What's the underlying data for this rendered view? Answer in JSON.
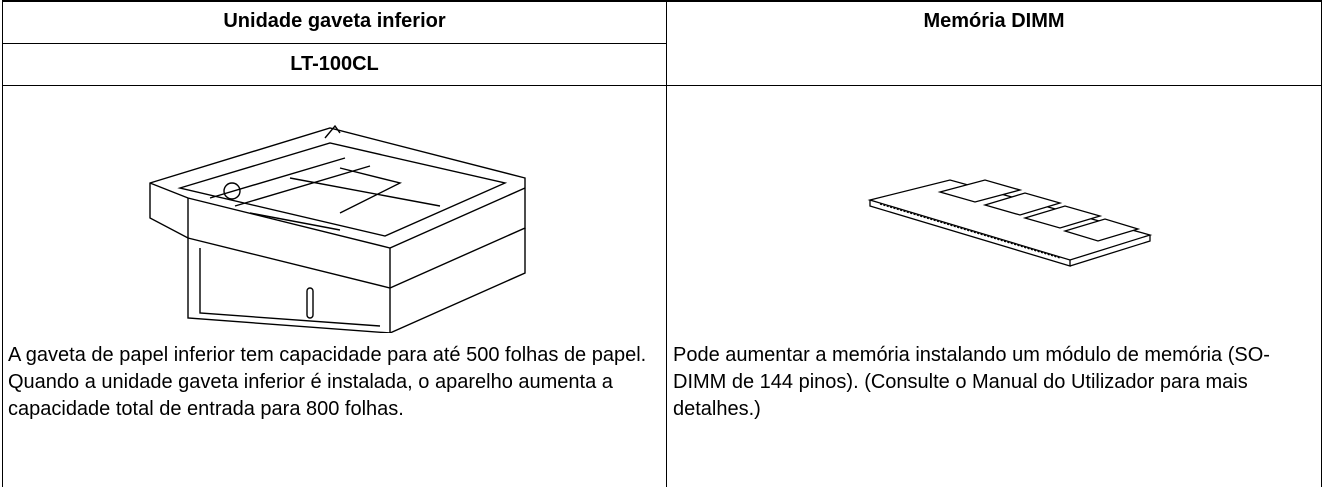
{
  "table": {
    "headers": [
      "Unidade gaveta inferior",
      "Memória DIMM"
    ],
    "subheader": "LT-100CL",
    "descriptions": [
      "A gaveta de papel inferior tem capacidade para até 500 folhas de papel. Quando a unidade gaveta inferior é instalada, o aparelho aumenta a capacidade total de entrada para 800 folhas.",
      "Pode aumentar a memória instalando um módulo de memória (SO-DIMM de 144 pinos). (Consulte o Manual do Utilizador para mais detalhes.)"
    ]
  }
}
